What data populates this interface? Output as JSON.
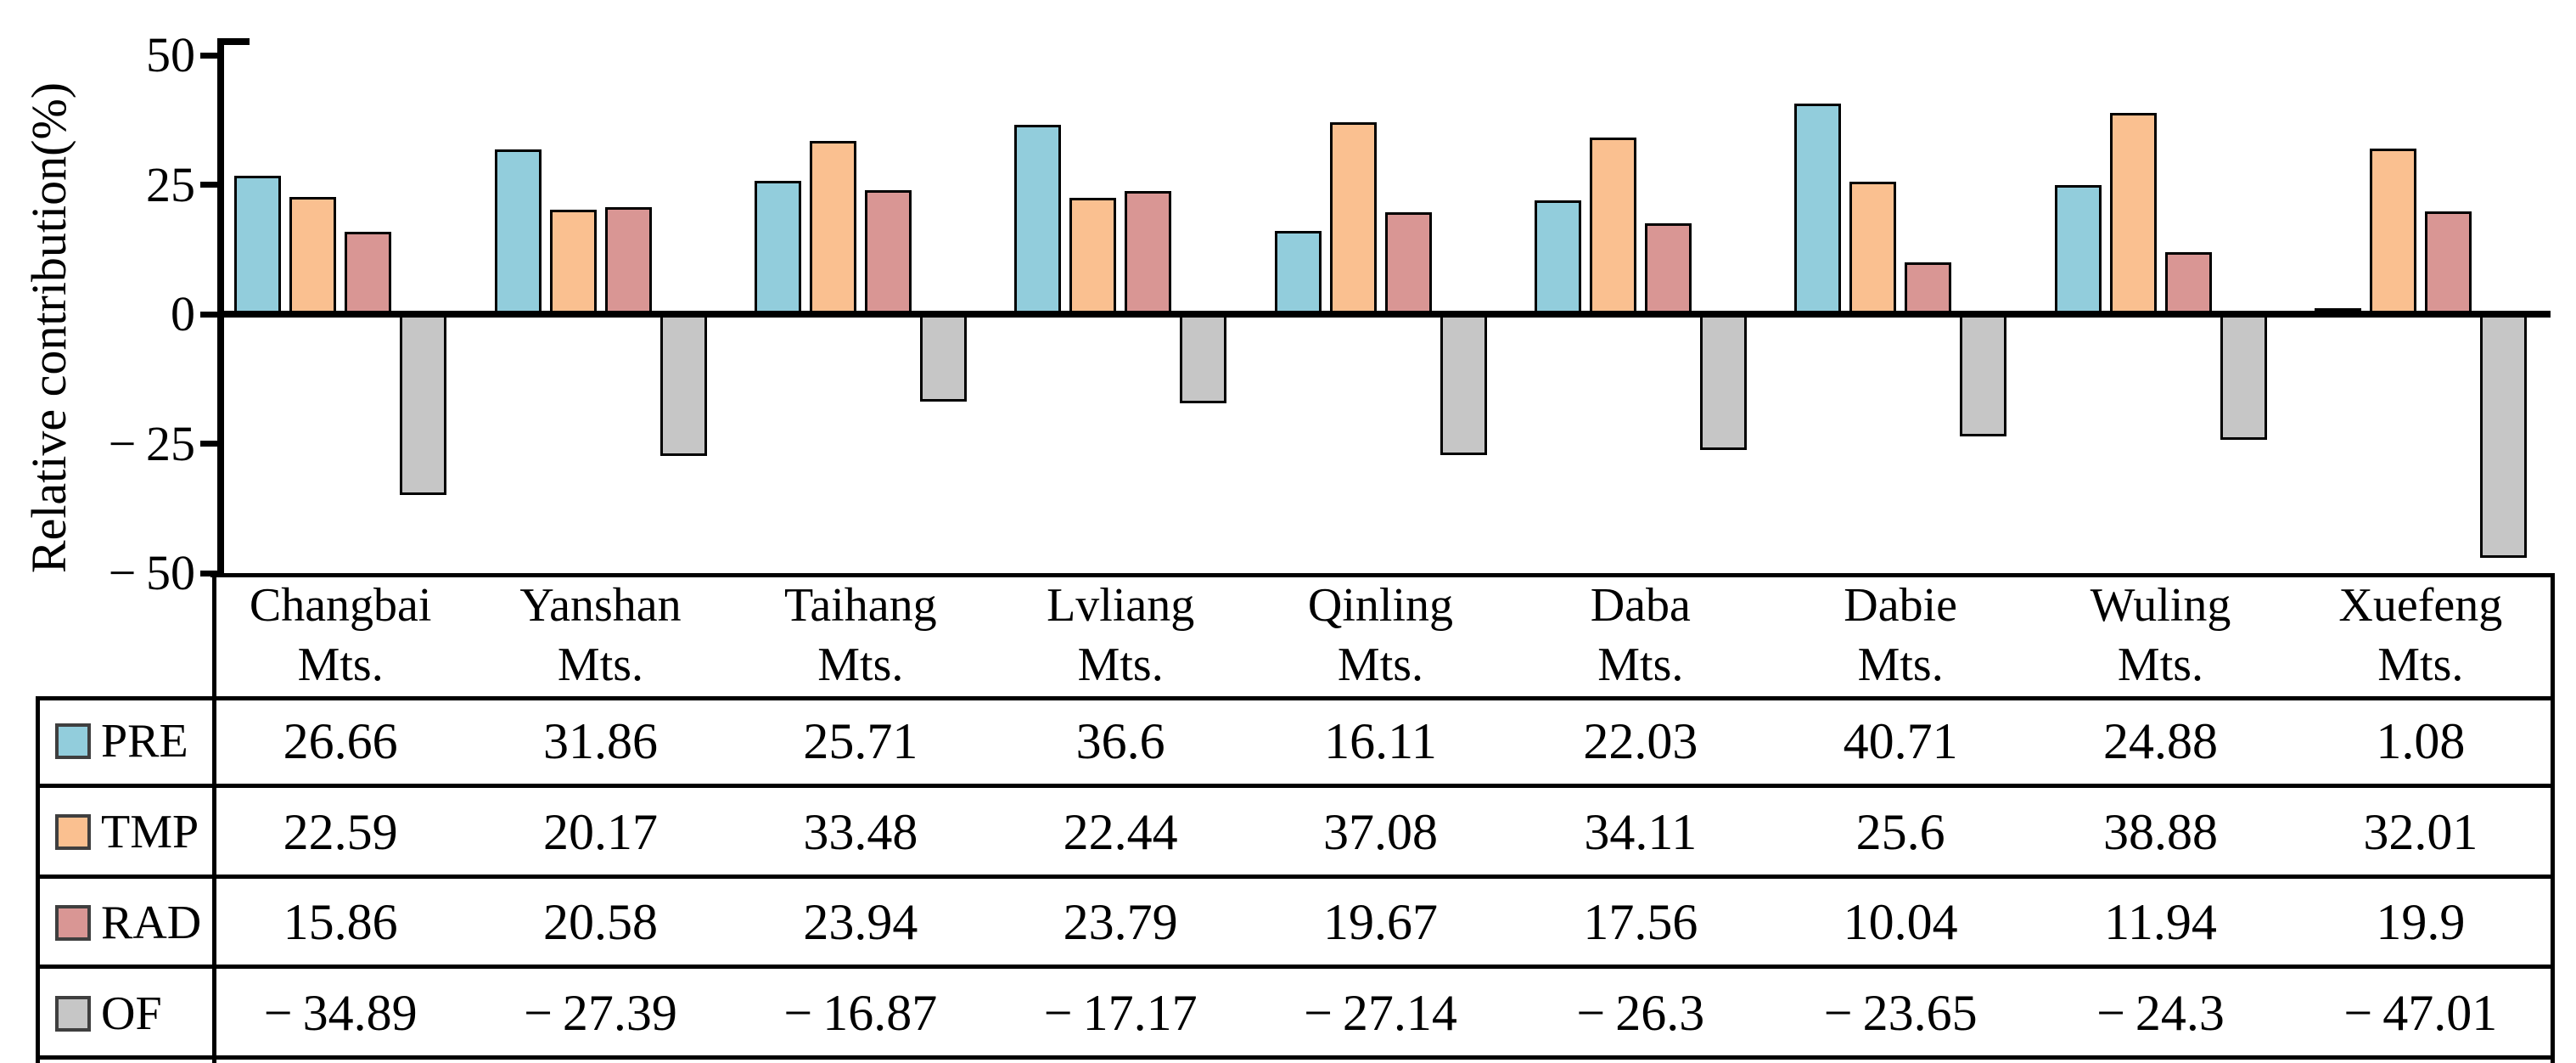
{
  "y_axis": {
    "title": "Relative contribution(%)",
    "ticks": [
      {
        "label": "50",
        "value": 50
      },
      {
        "label": "25",
        "value": 25
      },
      {
        "label": "0",
        "value": 0
      },
      {
        "label": "− 25",
        "value": -25
      },
      {
        "label": "− 50",
        "value": -50
      }
    ]
  },
  "chart_data": {
    "type": "bar",
    "title": "",
    "xlabel": "",
    "ylabel": "Relative contribution(%)",
    "ylim": [
      -50,
      50
    ],
    "grid": false,
    "legend_position": "table-left-column",
    "categories": [
      "Changbai Mts.",
      "Yanshan Mts.",
      "Taihang Mts.",
      "Lvliang Mts.",
      "Qinling Mts.",
      "Daba Mts.",
      "Dabie Mts.",
      "Wuling Mts.",
      "Xuefeng Mts."
    ],
    "series": [
      {
        "name": "PRE",
        "color": "#92CDDC",
        "values": [
          26.66,
          31.86,
          25.71,
          36.6,
          16.11,
          22.03,
          40.71,
          24.88,
          1.08
        ]
      },
      {
        "name": "TMP",
        "color": "#FAC090",
        "values": [
          22.59,
          20.17,
          33.48,
          22.44,
          37.08,
          34.11,
          25.6,
          38.88,
          32.01
        ]
      },
      {
        "name": "RAD",
        "color": "#D99694",
        "values": [
          15.86,
          20.58,
          23.94,
          23.79,
          19.67,
          17.56,
          10.04,
          11.94,
          19.9
        ]
      },
      {
        "name": "OF",
        "color": "#C6C6C6",
        "values": [
          -34.89,
          -27.39,
          -16.87,
          -17.17,
          -27.14,
          -26.3,
          -23.65,
          -24.3,
          -47.01
        ]
      }
    ]
  },
  "table": {
    "header": [
      {
        "line1": "Changbai",
        "line2": "Mts."
      },
      {
        "line1": "Yanshan",
        "line2": "Mts."
      },
      {
        "line1": "Taihang",
        "line2": "Mts."
      },
      {
        "line1": "Lvliang",
        "line2": "Mts."
      },
      {
        "line1": "Qinling",
        "line2": "Mts."
      },
      {
        "line1": "Daba",
        "line2": "Mts."
      },
      {
        "line1": "Dabie",
        "line2": "Mts."
      },
      {
        "line1": "Wuling",
        "line2": "Mts."
      },
      {
        "line1": "Xuefeng",
        "line2": "Mts."
      }
    ],
    "rows": [
      {
        "label": "PRE",
        "swatch": "#92CDDC",
        "display_values": [
          "26.66",
          "31.86",
          "25.71",
          "36.6",
          "16.11",
          "22.03",
          "40.71",
          "24.88",
          "1.08"
        ]
      },
      {
        "label": "TMP",
        "swatch": "#FAC090",
        "display_values": [
          "22.59",
          "20.17",
          "33.48",
          "22.44",
          "37.08",
          "34.11",
          "25.6",
          "38.88",
          "32.01"
        ]
      },
      {
        "label": "RAD",
        "swatch": "#D99694",
        "display_values": [
          "15.86",
          "20.58",
          "23.94",
          "23.79",
          "19.67",
          "17.56",
          "10.04",
          "11.94",
          "19.9"
        ]
      },
      {
        "label": "OF",
        "swatch": "#C6C6C6",
        "display_values": [
          "− 34.89",
          "− 27.39",
          "− 16.87",
          "− 17.17",
          "− 27.14",
          "− 26.3",
          "− 23.65",
          "− 24.3",
          "− 47.01"
        ]
      }
    ]
  }
}
